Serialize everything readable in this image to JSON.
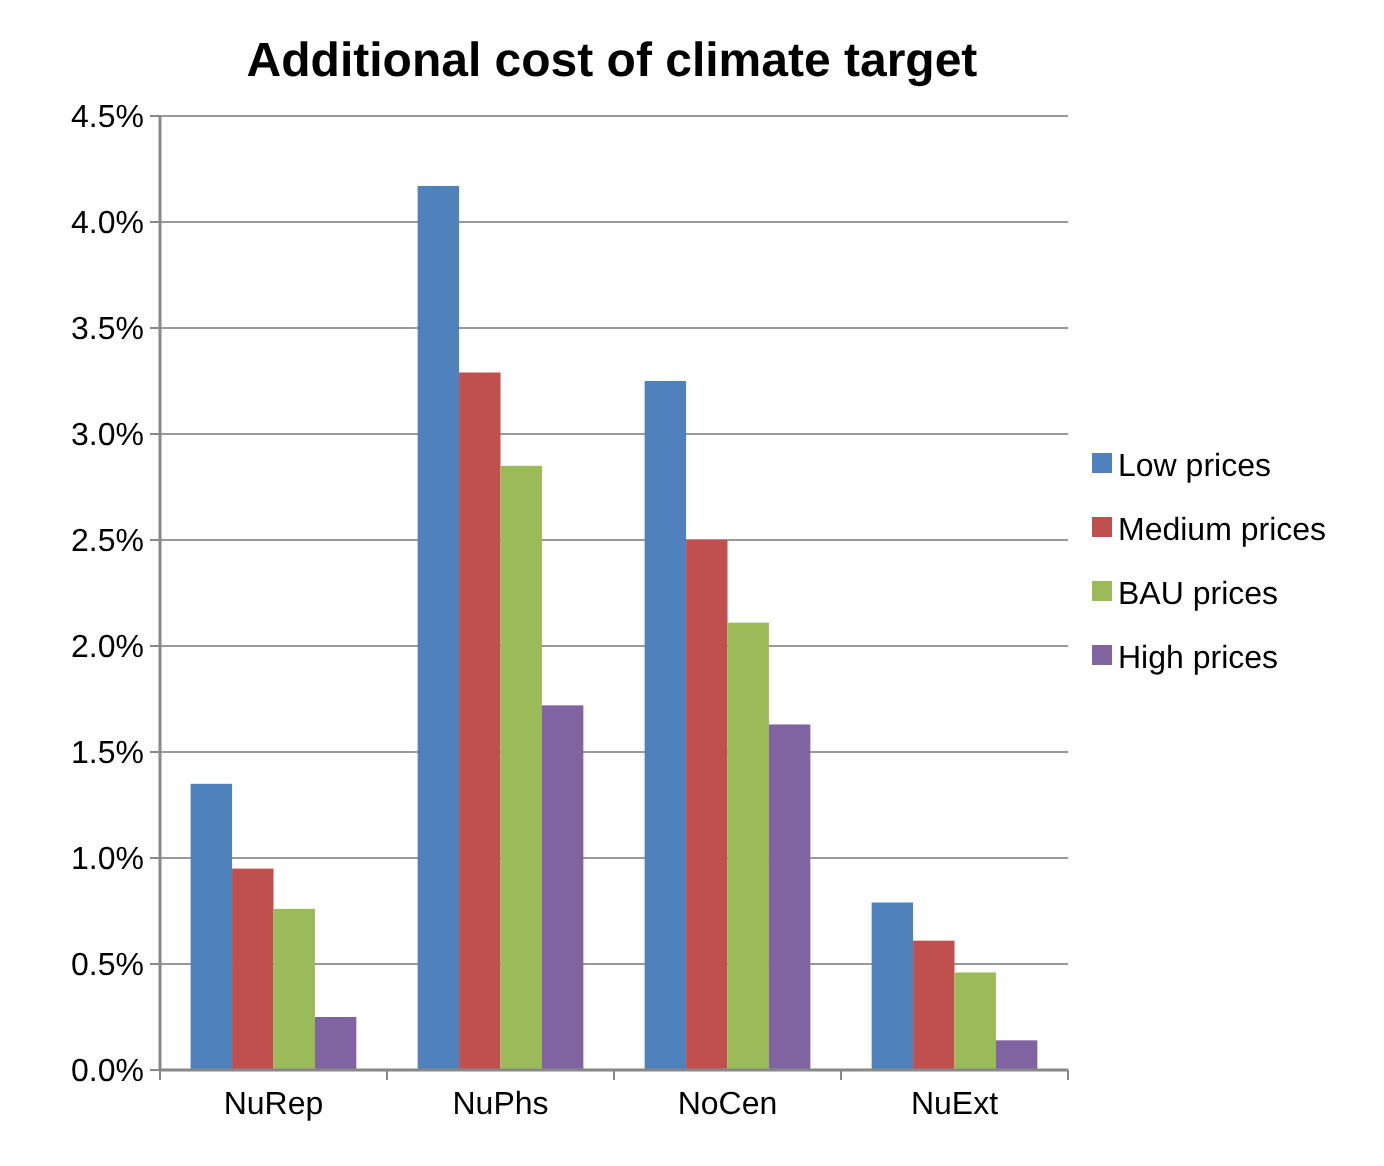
{
  "chart_data": {
    "type": "bar",
    "title": "Additional cost of climate target",
    "categories": [
      "NuRep",
      "NuPhs",
      "NoCen",
      "NuExt"
    ],
    "series": [
      {
        "name": "Low prices",
        "color": "#4f81bd",
        "values": [
          1.35,
          4.17,
          3.25,
          0.79
        ]
      },
      {
        "name": "Medium prices",
        "color": "#c0504d",
        "values": [
          0.95,
          3.29,
          2.5,
          0.61
        ]
      },
      {
        "name": "BAU prices",
        "color": "#9bbb59",
        "values": [
          0.76,
          2.85,
          2.11,
          0.46
        ]
      },
      {
        "name": "High prices",
        "color": "#8064a2",
        "values": [
          0.25,
          1.72,
          1.63,
          0.14
        ]
      }
    ],
    "ylim": [
      0,
      4.5
    ],
    "yticks": [
      {
        "value": 0,
        "label": "0.0%"
      },
      {
        "value": 0.5,
        "label": "0.5%"
      },
      {
        "value": 1,
        "label": "1.0%"
      },
      {
        "value": 1.5,
        "label": "1.5%"
      },
      {
        "value": 2,
        "label": "2.0%"
      },
      {
        "value": 2.5,
        "label": "2.5%"
      },
      {
        "value": 3,
        "label": "3.0%"
      },
      {
        "value": 3.5,
        "label": "3.5%"
      },
      {
        "value": 4,
        "label": "4.0%"
      },
      {
        "value": 4.5,
        "label": "4.5%"
      }
    ],
    "grid": "y",
    "legend": "right"
  }
}
